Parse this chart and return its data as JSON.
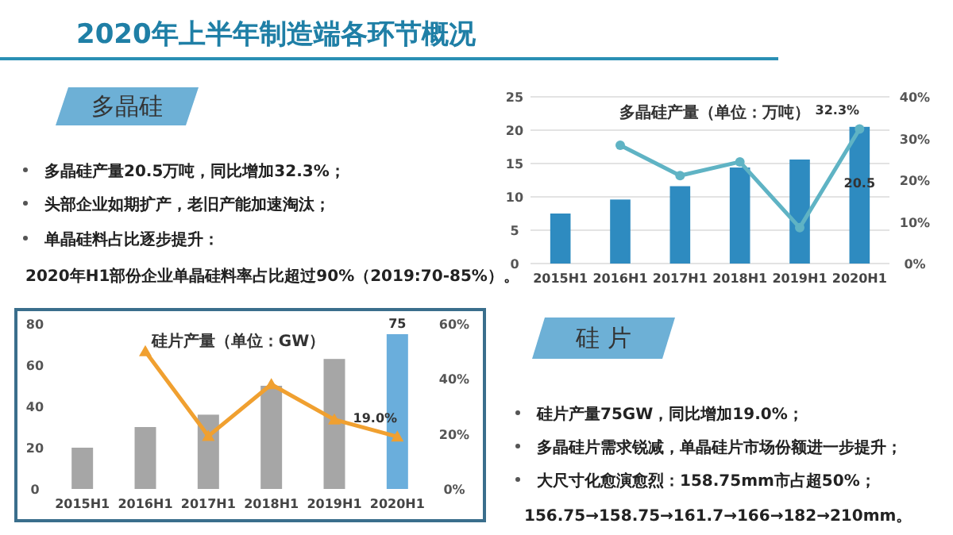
{
  "chart_data": [
    {
      "type": "other",
      "title": "2020年上半年制造端各环节概况"
    },
    {
      "type": "other",
      "title": "多晶硅",
      "annotations": [
        "多晶硅产量20.5万吨，同比增加32.3%；",
        "头部企业如期扩产，老旧产能加速淘汰；",
        "单晶硅料占比逐步提升：",
        "2020年H1部份企业单晶硅料率占比超过90%（2019:70-85%）。"
      ]
    },
    {
      "type": "bar",
      "title": "多晶硅产量（单位：万吨）",
      "categories": [
        "2015H1",
        "2016H1",
        "2017H1",
        "2018H1",
        "2019H1",
        "2020H1"
      ],
      "ylim": [
        0,
        25
      ],
      "yticks": [
        0,
        5,
        10,
        15,
        20,
        25
      ],
      "y2lim": [
        0,
        40
      ],
      "y2ticks": [
        {
          "value": 0,
          "label": "0%"
        },
        {
          "value": 10,
          "label": "10%"
        },
        {
          "value": 20,
          "label": "20%"
        },
        {
          "value": 30,
          "label": "30%"
        },
        {
          "value": 40,
          "label": "40%"
        }
      ],
      "grid": "y",
      "series": [
        {
          "color": "#2e8bc0",
          "values": [
            7.5,
            9.6,
            11.6,
            14.4,
            15.6,
            20.5
          ],
          "value_labels": [
            null,
            null,
            null,
            null,
            null,
            "20.5"
          ]
        },
        {
          "type": "line",
          "axis": "y2",
          "color": "#5fb3c4",
          "marker": "circle",
          "values": [
            null,
            28.4,
            21.1,
            24.4,
            8.6,
            32.3
          ],
          "value_labels": [
            null,
            null,
            null,
            null,
            null,
            "32.3%"
          ]
        }
      ]
    },
    {
      "type": "bar",
      "title": "硅片产量（单位：GW）",
      "categories": [
        "2015H1",
        "2016H1",
        "2017H1",
        "2018H1",
        "2019H1",
        "2020H1"
      ],
      "ylim": [
        0,
        80
      ],
      "yticks": [
        0,
        20,
        40,
        60,
        80
      ],
      "y2lim": [
        0,
        60
      ],
      "y2ticks": [
        {
          "value": 0,
          "label": "0%"
        },
        {
          "value": 20,
          "label": "20%"
        },
        {
          "value": 40,
          "label": "40%"
        },
        {
          "value": 60,
          "label": "60%"
        }
      ],
      "series": [
        {
          "colors": [
            "#a6a6a6",
            "#a6a6a6",
            "#a6a6a6",
            "#a6a6a6",
            "#a6a6a6",
            "#6aaedc"
          ],
          "values": [
            20,
            30,
            36,
            50,
            63,
            75
          ],
          "value_labels": [
            null,
            null,
            null,
            null,
            null,
            "75"
          ]
        },
        {
          "type": "line",
          "axis": "y2",
          "color": "#f0a030",
          "marker": "triangle",
          "values": [
            null,
            50,
            19.2,
            38,
            25.2,
            19.0
          ],
          "value_labels": [
            null,
            null,
            null,
            null,
            null,
            "19.0%"
          ]
        }
      ]
    },
    {
      "type": "other",
      "title": "硅 片",
      "annotations": [
        "硅片产量75GW，同比增加19.0%；",
        "多晶硅片需求锐减，单晶硅片市场份额进一步提升；",
        "大尺寸化愈演愈烈：158.75mm市占超50%；",
        "156.75→158.75→161.7→166→182→210mm。"
      ]
    }
  ]
}
